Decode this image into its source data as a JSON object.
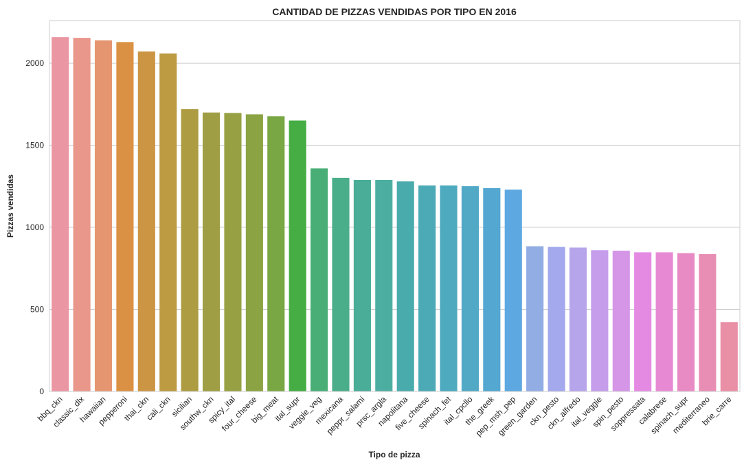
{
  "chart_data": {
    "type": "bar",
    "title": "CANTIDAD DE PIZZAS VENDIDAS POR TIPO EN 2016",
    "xlabel": "Tipo de pizza",
    "ylabel": "Pizzas vendidas",
    "ylim": [
      0,
      2260
    ],
    "yticks": [
      0,
      500,
      1000,
      1500,
      2000
    ],
    "grid": true,
    "categories": [
      "bbq_ckn",
      "classic_dlx",
      "hawaiian",
      "pepperoni",
      "thai_ckn",
      "cali_ckn",
      "sicilian",
      "southw_ckn",
      "spicy_ital",
      "four_cheese",
      "big_meat",
      "ital_supr",
      "veggie_veg",
      "mexicana",
      "peppr_salami",
      "prsc_argla",
      "napolitana",
      "five_cheese",
      "spinach_fet",
      "ital_cpcllo",
      "the_greek",
      "pep_msh_pep",
      "green_garden",
      "ckn_pesto",
      "ckn_alfredo",
      "ital_veggie",
      "spin_pesto",
      "soppressata",
      "calabrese",
      "spinach_supr",
      "mediterraneo",
      "brie_carre"
    ],
    "values": [
      2159,
      2155,
      2140,
      2129,
      2072,
      2060,
      1720,
      1700,
      1697,
      1689,
      1677,
      1651,
      1359,
      1302,
      1289,
      1289,
      1280,
      1255,
      1255,
      1251,
      1239,
      1230,
      885,
      881,
      877,
      861,
      858,
      848,
      848,
      843,
      837,
      422
    ],
    "colors": [
      "#ea96a3",
      "#ea978b",
      "#e59671",
      "#db9143",
      "#cb9544",
      "#bd9b42",
      "#ad9c42",
      "#a09e44",
      "#97a143",
      "#8ba343",
      "#79a743",
      "#45ad44",
      "#49ae76",
      "#4bae8a",
      "#4aad97",
      "#4cada1",
      "#4aabac",
      "#4caab6",
      "#4daabf",
      "#51a9c6",
      "#53a7d1",
      "#5da8e0",
      "#92ade4",
      "#a3a9ec",
      "#b7a5ec",
      "#c59deb",
      "#d596e7",
      "#e58ae3",
      "#e78ad3",
      "#e88bc4",
      "#e88eb5",
      "#e98fa6"
    ]
  }
}
